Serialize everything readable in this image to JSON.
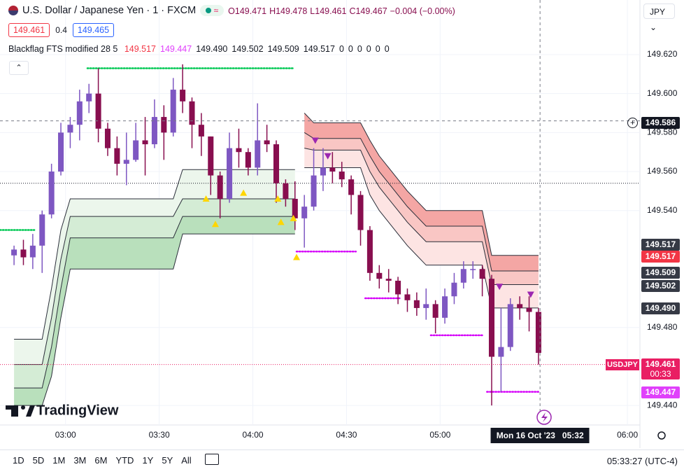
{
  "header": {
    "symbol": "U.S. Dollar / Japanese Yen · 1 · FXCM",
    "ohlc": [
      "O149.471",
      "H149.478",
      "L149.461",
      "C149.467",
      "−0.004 (−0.00%)"
    ],
    "bid": "149.461",
    "spread": "0.4",
    "ask": "149.465",
    "indicator": "Blackflag FTS modified 28 5",
    "indicator_values": [
      "149.517",
      "149.447",
      "149.490",
      "149.502",
      "149.509",
      "149.517",
      "0",
      "0",
      "0",
      "0",
      "0",
      "0"
    ],
    "currency": "JPY"
  },
  "chart_data": {
    "type": "candlestick",
    "x": [
      "02:42",
      "02:45",
      "02:48",
      "02:51",
      "02:54",
      "02:57",
      "03:00",
      "03:03",
      "03:06",
      "03:09",
      "03:12",
      "03:15",
      "03:18",
      "03:21",
      "03:24",
      "03:27",
      "03:30",
      "03:33",
      "03:36",
      "03:39",
      "03:42",
      "03:45",
      "03:48",
      "03:51",
      "03:54",
      "03:57",
      "04:00",
      "04:03",
      "04:06",
      "04:09",
      "04:12",
      "04:15",
      "04:18",
      "04:21",
      "04:24",
      "04:27",
      "04:30",
      "04:33",
      "04:36",
      "04:39",
      "04:42",
      "04:45",
      "04:48",
      "04:51",
      "04:54",
      "04:57",
      "05:00",
      "05:03",
      "05:06",
      "05:09",
      "05:12",
      "05:15",
      "05:18",
      "05:21",
      "05:24",
      "05:27",
      "05:30"
    ],
    "ohlc": [
      [
        149.517,
        149.522,
        149.512,
        149.52
      ],
      [
        149.52,
        149.525,
        149.512,
        149.516
      ],
      [
        149.516,
        149.528,
        149.51,
        149.522
      ],
      [
        149.522,
        149.54,
        149.508,
        149.538
      ],
      [
        149.538,
        149.564,
        149.536,
        149.56
      ],
      [
        149.56,
        149.585,
        149.558,
        149.58
      ],
      [
        149.58,
        149.588,
        149.572,
        149.584
      ],
      [
        149.584,
        149.602,
        149.576,
        149.596
      ],
      [
        149.596,
        149.605,
        149.59,
        149.6
      ],
      [
        149.6,
        149.613,
        149.575,
        149.582
      ],
      [
        149.582,
        149.585,
        149.568,
        149.572
      ],
      [
        149.572,
        149.578,
        149.558,
        149.564
      ],
      [
        149.564,
        149.58,
        149.553,
        149.566
      ],
      [
        149.566,
        149.585,
        149.565,
        149.576
      ],
      [
        149.576,
        149.588,
        149.558,
        149.574
      ],
      [
        149.574,
        149.597,
        149.572,
        149.588
      ],
      [
        149.588,
        149.594,
        149.566,
        149.58
      ],
      [
        149.58,
        149.608,
        149.578,
        149.602
      ],
      [
        149.602,
        149.615,
        149.59,
        149.596
      ],
      [
        149.596,
        149.598,
        149.572,
        149.584
      ],
      [
        149.584,
        149.59,
        149.568,
        149.578
      ],
      [
        149.578,
        149.578,
        149.548,
        149.558
      ],
      [
        149.558,
        149.56,
        149.536,
        149.546
      ],
      [
        149.546,
        149.58,
        149.544,
        149.572
      ],
      [
        149.572,
        149.582,
        149.562,
        149.57
      ],
      [
        149.57,
        149.572,
        149.558,
        149.562
      ],
      [
        149.562,
        149.595,
        149.558,
        149.576
      ],
      [
        149.576,
        149.584,
        149.57,
        149.574
      ],
      [
        149.574,
        149.576,
        149.544,
        149.554
      ],
      [
        149.554,
        149.556,
        149.542,
        149.546
      ],
      [
        149.546,
        149.555,
        149.53,
        149.536
      ],
      [
        149.536,
        149.548,
        149.521,
        149.542
      ],
      [
        149.542,
        149.572,
        149.54,
        149.558
      ],
      [
        149.558,
        149.572,
        149.55,
        149.562
      ],
      [
        149.562,
        149.57,
        149.554,
        149.56
      ],
      [
        149.56,
        149.565,
        149.552,
        149.556
      ],
      [
        149.556,
        149.558,
        149.538,
        149.548
      ],
      [
        149.548,
        149.55,
        149.522,
        149.53
      ],
      [
        149.53,
        149.532,
        149.504,
        149.508
      ],
      [
        149.508,
        149.512,
        149.5,
        149.505
      ],
      [
        149.505,
        149.51,
        149.498,
        149.504
      ],
      [
        149.504,
        149.506,
        149.492,
        149.497
      ],
      [
        149.497,
        149.5,
        149.488,
        149.494
      ],
      [
        149.494,
        149.498,
        149.486,
        149.49
      ],
      [
        149.49,
        149.5,
        149.484,
        149.492
      ],
      [
        149.492,
        149.494,
        149.477,
        149.485
      ],
      [
        149.485,
        149.5,
        149.482,
        149.496
      ],
      [
        149.496,
        149.508,
        149.492,
        149.503
      ],
      [
        149.503,
        149.514,
        149.5,
        149.51
      ],
      [
        149.51,
        149.514,
        149.505,
        149.51
      ],
      [
        149.51,
        149.512,
        149.496,
        149.505
      ],
      [
        149.505,
        149.507,
        149.44,
        149.465
      ],
      [
        149.465,
        149.49,
        149.447,
        149.47
      ],
      [
        149.47,
        149.495,
        149.468,
        149.492
      ],
      [
        149.492,
        149.496,
        149.484,
        149.49
      ],
      [
        149.49,
        149.496,
        149.478,
        149.488
      ],
      [
        149.488,
        149.49,
        149.461,
        149.467
      ]
    ],
    "up_color": "#7e57c2",
    "down_color": "#880e4f",
    "line_color": "#2a2e39",
    "support_lines": [
      [
        149.474,
        149.474,
        149.474,
        149.474,
        149.5,
        149.53,
        149.546,
        149.546,
        149.546,
        149.546,
        149.546,
        149.546,
        149.546,
        149.546,
        149.546,
        149.546,
        149.546,
        149.546,
        149.561,
        149.561,
        149.561,
        149.561,
        149.561,
        149.561,
        149.561,
        149.561,
        149.561,
        149.561,
        149.561,
        149.561,
        149.561,
        null,
        null,
        null,
        null,
        null,
        null,
        null,
        null,
        null,
        null,
        null,
        null,
        null,
        null,
        null,
        null,
        null,
        null,
        null,
        null,
        null,
        null,
        null,
        null,
        null,
        null
      ],
      [
        149.461,
        149.461,
        149.461,
        149.461,
        149.485,
        149.515,
        149.537,
        149.537,
        149.537,
        149.537,
        149.537,
        149.537,
        149.537,
        149.537,
        149.537,
        149.537,
        149.537,
        149.537,
        149.546,
        149.546,
        149.546,
        149.546,
        149.546,
        149.546,
        149.546,
        149.546,
        149.546,
        149.546,
        149.546,
        149.546,
        149.546,
        null,
        null,
        null,
        null,
        null,
        null,
        null,
        null,
        null,
        null,
        null,
        null,
        null,
        null,
        null,
        null,
        null,
        null,
        null,
        null,
        null,
        null,
        null,
        null,
        null,
        null
      ],
      [
        149.449,
        149.449,
        149.449,
        149.449,
        149.47,
        149.5,
        149.526,
        149.526,
        149.526,
        149.526,
        149.526,
        149.526,
        149.526,
        149.526,
        149.526,
        149.526,
        149.526,
        149.526,
        149.537,
        149.537,
        149.537,
        149.537,
        149.537,
        149.537,
        149.537,
        149.537,
        149.537,
        149.537,
        149.537,
        149.537,
        149.537,
        null,
        null,
        null,
        null,
        null,
        null,
        null,
        null,
        null,
        null,
        null,
        null,
        null,
        null,
        null,
        null,
        null,
        null,
        null,
        null,
        null,
        null,
        null,
        null,
        null,
        null
      ],
      [
        149.44,
        149.44,
        149.44,
        149.44,
        149.455,
        149.485,
        149.51,
        149.51,
        149.51,
        149.51,
        149.51,
        149.51,
        149.51,
        149.51,
        149.51,
        149.51,
        149.51,
        149.51,
        149.528,
        149.528,
        149.528,
        149.528,
        149.528,
        149.528,
        149.528,
        149.528,
        149.528,
        149.528,
        149.528,
        149.528,
        149.528,
        null,
        null,
        null,
        null,
        null,
        null,
        null,
        null,
        null,
        null,
        null,
        null,
        null,
        null,
        null,
        null,
        null,
        null,
        null,
        null,
        null,
        null,
        null,
        null,
        null,
        null
      ]
    ],
    "support_colors": [
      "#ecf6ec",
      "#d4ecd5",
      "#b9e0bc"
    ],
    "resistance_lines": [
      [
        null,
        null,
        null,
        null,
        null,
        null,
        null,
        null,
        null,
        null,
        null,
        null,
        null,
        null,
        null,
        null,
        null,
        null,
        null,
        null,
        null,
        null,
        null,
        null,
        null,
        null,
        null,
        null,
        null,
        null,
        null,
        149.59,
        149.585,
        149.585,
        149.585,
        149.585,
        149.585,
        149.585,
        149.576,
        149.568,
        149.562,
        149.556,
        149.55,
        149.545,
        149.54,
        149.54,
        149.54,
        149.54,
        149.54,
        149.54,
        149.54,
        149.517,
        149.517,
        149.517,
        149.517,
        149.517,
        149.517
      ],
      [
        null,
        null,
        null,
        null,
        null,
        null,
        null,
        null,
        null,
        null,
        null,
        null,
        null,
        null,
        null,
        null,
        null,
        null,
        null,
        null,
        null,
        null,
        null,
        null,
        null,
        null,
        null,
        null,
        null,
        null,
        null,
        149.58,
        149.577,
        149.577,
        149.577,
        149.577,
        149.577,
        149.577,
        149.568,
        149.56,
        149.554,
        149.548,
        149.542,
        149.537,
        149.532,
        149.532,
        149.532,
        149.532,
        149.532,
        149.532,
        149.532,
        149.509,
        149.509,
        149.509,
        149.509,
        149.509,
        149.509
      ],
      [
        null,
        null,
        null,
        null,
        null,
        null,
        null,
        null,
        null,
        null,
        null,
        null,
        null,
        null,
        null,
        null,
        null,
        null,
        null,
        null,
        null,
        null,
        null,
        null,
        null,
        null,
        null,
        null,
        null,
        null,
        null,
        149.572,
        149.571,
        149.571,
        149.571,
        149.571,
        149.571,
        149.571,
        149.56,
        149.552,
        149.546,
        149.54,
        149.534,
        149.529,
        149.524,
        149.524,
        149.524,
        149.524,
        149.524,
        149.524,
        149.524,
        149.502,
        149.502,
        149.502,
        149.502,
        149.502,
        149.502
      ],
      [
        null,
        null,
        null,
        null,
        null,
        null,
        null,
        null,
        null,
        null,
        null,
        null,
        null,
        null,
        null,
        null,
        null,
        null,
        null,
        null,
        null,
        null,
        null,
        null,
        null,
        null,
        null,
        null,
        null,
        null,
        null,
        149.562,
        149.562,
        149.562,
        149.562,
        149.562,
        149.562,
        149.562,
        149.548,
        149.54,
        149.534,
        149.528,
        149.522,
        149.517,
        149.512,
        149.512,
        149.512,
        149.512,
        149.512,
        149.512,
        149.512,
        149.49,
        149.49,
        149.49,
        149.49,
        149.49,
        149.49
      ]
    ],
    "resistance_colors": [
      "#f4a6a4",
      "#f9c6c4",
      "#fde4e3"
    ],
    "stops": [
      {
        "from": "02:39",
        "to": "02:50",
        "value": 149.53,
        "color": "#00c853"
      },
      {
        "from": "03:07",
        "to": "04:13",
        "value": 149.613,
        "color": "#00c853"
      },
      {
        "from": "04:14",
        "to": "04:33",
        "value": 149.519,
        "color": "#d500f9"
      },
      {
        "from": "04:36",
        "to": "04:47",
        "value": 149.495,
        "color": "#d500f9"
      },
      {
        "from": "04:57",
        "to": "05:14",
        "value": 149.476,
        "color": "#d500f9"
      },
      {
        "from": "05:15",
        "to": "05:32",
        "value": 149.447,
        "color": "#d500f9"
      }
    ],
    "signals": [
      {
        "x": "03:45",
        "value": 149.546,
        "dir": "up"
      },
      {
        "x": "03:48",
        "value": 149.533,
        "dir": "up"
      },
      {
        "x": "03:57",
        "value": 149.549,
        "dir": "up"
      },
      {
        "x": "04:08",
        "value": 149.546,
        "dir": "up"
      },
      {
        "x": "04:09",
        "value": 149.534,
        "dir": "up"
      },
      {
        "x": "04:13",
        "value": 149.536,
        "dir": "up"
      },
      {
        "x": "04:14",
        "value": 149.516,
        "dir": "up"
      },
      {
        "x": "04:20",
        "value": 149.576,
        "dir": "down"
      },
      {
        "x": "04:24",
        "value": 149.568,
        "dir": "down"
      },
      {
        "x": "05:19",
        "value": 149.501,
        "dir": "down"
      },
      {
        "x": "05:29",
        "value": 149.497,
        "dir": "down"
      }
    ],
    "signal_up_color": "#ffd600",
    "signal_down_color": "#9c27b0",
    "ref_line": 149.554,
    "current_price": 149.461,
    "crosshair_price": 149.586,
    "crosshair_date": "Mon 16 Oct '23",
    "crosshair_clock": "05:32",
    "xlim": [
      "02:39",
      "06:04"
    ],
    "xticks": [
      "03:00",
      "03:30",
      "04:00",
      "04:30",
      "05:00",
      "06:00"
    ],
    "ylim": [
      149.43,
      149.648
    ],
    "yticks": [
      {
        "value": 149.44,
        "label": "149.440"
      },
      {
        "value": 149.48,
        "label": "149.480"
      },
      {
        "value": 149.54,
        "label": "149.540"
      },
      {
        "value": 149.56,
        "label": "149.560"
      },
      {
        "value": 149.58,
        "label": "149.580"
      },
      {
        "value": 149.6,
        "label": "149.600"
      },
      {
        "value": 149.62,
        "label": "149.620"
      }
    ],
    "grid": true
  },
  "price_labels": [
    {
      "label": "149.517",
      "color": "#363a45"
    },
    {
      "label": "149.517",
      "color": "#f23645"
    },
    {
      "label": "149.509",
      "color": "#363a45"
    },
    {
      "label": "149.502",
      "color": "#363a45"
    },
    {
      "label": "149.490",
      "color": "#363a45"
    },
    {
      "label": "149.447",
      "color": "#e040fb"
    }
  ],
  "last": {
    "symbol": "USDJPY",
    "countdown": "00:33"
  },
  "logo": "TradingView",
  "ranges": [
    "1D",
    "5D",
    "1M",
    "3M",
    "6M",
    "YTD",
    "1Y",
    "5Y",
    "All"
  ],
  "clock": "05:33:27 (UTC-4)"
}
